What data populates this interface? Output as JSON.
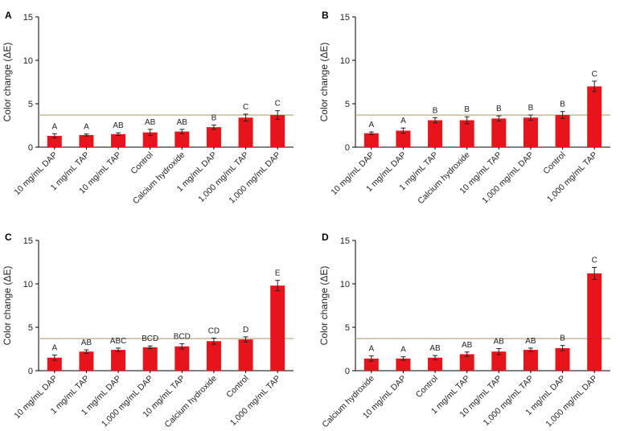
{
  "figure": {
    "y_axis_label": "Color change (ΔE)",
    "threshold_color": "#b8a071",
    "bar_color": "#e8141b"
  },
  "chart_data": [
    {
      "panel": "A",
      "type": "bar",
      "ylabel": "Color change (ΔE)",
      "ylim": [
        0,
        15
      ],
      "yticks": [
        0,
        5,
        10,
        15
      ],
      "threshold": 3.7,
      "categories": [
        "10 mg/mL DAP",
        "1 mg/mL TAP",
        "10 mg/mL TAP",
        "Control",
        "Calcium hydroxide",
        "1 mg/mL DAP",
        "1,000 mg/mL TAP",
        "1,000 mg/mL DAP"
      ],
      "values": [
        1.3,
        1.4,
        1.5,
        1.7,
        1.8,
        2.3,
        3.4,
        3.7
      ],
      "errors": [
        0.25,
        0.12,
        0.15,
        0.35,
        0.25,
        0.25,
        0.4,
        0.5
      ],
      "labels": [
        "A",
        "A",
        "AB",
        "AB",
        "AB",
        "B",
        "C",
        "C"
      ]
    },
    {
      "panel": "B",
      "type": "bar",
      "ylabel": "Color change (ΔE)",
      "ylim": [
        0,
        15
      ],
      "yticks": [
        0,
        5,
        10,
        15
      ],
      "threshold": 3.7,
      "categories": [
        "10 mg/mL DAP",
        "1 mg/mL DAP",
        "1 mg/mL TAP",
        "Calcium hydroxide",
        "10 mg/mL TAP",
        "1,000 mg/mL DAP",
        "Control",
        "1,000 mg/mL TAP"
      ],
      "values": [
        1.6,
        1.9,
        3.1,
        3.1,
        3.3,
        3.4,
        3.7,
        7.0
      ],
      "errors": [
        0.15,
        0.3,
        0.3,
        0.4,
        0.3,
        0.3,
        0.4,
        0.6
      ],
      "labels": [
        "A",
        "A",
        "B",
        "B",
        "B",
        "B",
        "B",
        "C"
      ]
    },
    {
      "panel": "C",
      "type": "bar",
      "ylabel": "Color change (ΔE)",
      "ylim": [
        0,
        15
      ],
      "yticks": [
        0,
        5,
        10,
        15
      ],
      "threshold": 3.7,
      "categories": [
        "10 mg/mL DAP",
        "1 mg/mL TAP",
        "1 mg/mL DAP",
        "1,000 mg/mL DAP",
        "10 mg/mL TAP",
        "Calcium hydroxide",
        "Control",
        "1,000 mg/mL TAP"
      ],
      "values": [
        1.5,
        2.2,
        2.4,
        2.7,
        2.8,
        3.4,
        3.6,
        9.8
      ],
      "errors": [
        0.3,
        0.2,
        0.2,
        0.15,
        0.3,
        0.35,
        0.3,
        0.6
      ],
      "labels": [
        "A",
        "AB",
        "ABC",
        "BCD",
        "BCD",
        "CD",
        "D",
        "E"
      ]
    },
    {
      "panel": "D",
      "type": "bar",
      "ylabel": "Color change (ΔE)",
      "ylim": [
        0,
        15
      ],
      "yticks": [
        0,
        5,
        10,
        15
      ],
      "threshold": 3.7,
      "categories": [
        "Calcium hydroxide",
        "10 mg/mL DAP",
        "Control",
        "1 mg/mL TAP",
        "10 mg/mL TAP",
        "1,000 mg/mL TAP",
        "1 mg/mL DAP",
        "1,000 mg/mL DAP"
      ],
      "values": [
        1.4,
        1.4,
        1.5,
        1.9,
        2.2,
        2.4,
        2.6,
        11.2
      ],
      "errors": [
        0.3,
        0.2,
        0.25,
        0.25,
        0.35,
        0.2,
        0.3,
        0.7
      ],
      "labels": [
        "A",
        "A",
        "AB",
        "AB",
        "AB",
        "AB",
        "B",
        "C"
      ]
    }
  ]
}
